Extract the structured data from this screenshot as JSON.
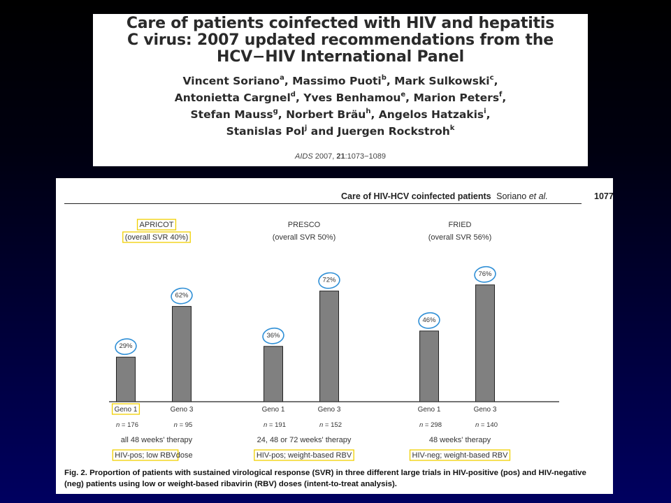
{
  "slide": {
    "paper_title_lines": [
      "Care of patients coinfected with HIV and hepatitis",
      "C virus: 2007 updated recommendations from the",
      "HCV−HIV International Panel"
    ],
    "author_lines": [
      [
        {
          "name": "Vincent Soriano",
          "sup": "a"
        },
        {
          "name": ", Massimo Puoti",
          "sup": "b"
        },
        {
          "name": ", Mark Sulkowski",
          "sup": "c"
        },
        {
          "name": ",",
          "sup": ""
        }
      ],
      [
        {
          "name": "Antonietta Cargnel",
          "sup": "d"
        },
        {
          "name": ", Yves Benhamou",
          "sup": "e"
        },
        {
          "name": ", Marion Peters",
          "sup": "f"
        },
        {
          "name": ",",
          "sup": ""
        }
      ],
      [
        {
          "name": "Stefan Mauss",
          "sup": "g"
        },
        {
          "name": ", Norbert Bräu",
          "sup": "h"
        },
        {
          "name": ", Angelos Hatzakis",
          "sup": "i"
        },
        {
          "name": ",",
          "sup": ""
        }
      ],
      [
        {
          "name": "Stanislas Pol",
          "sup": "j"
        },
        {
          "name": " and Juergen Rockstroh",
          "sup": "k"
        }
      ]
    ],
    "citation": {
      "journal": "AIDS",
      "year": "2007,",
      "volume": "21",
      "pages": ":1073−1089"
    },
    "running_header": {
      "title": "Care of HIV-HCV coinfected patients",
      "authors": "Soriano",
      "etal": "et al.",
      "page": "1077"
    },
    "figure_caption": {
      "label": "Fig. 2.",
      "text": "Proportion of patients with sustained virological response (SVR) in three different large trials in HIV-positive (pos) and HIV-negative (neg) patients using low or weight-based ribavirin (RBV) doses (intent-to-treat analysis)."
    },
    "annotation_color": "#2f8fd6",
    "highlight_color": "#f0d000"
  },
  "chart_data": {
    "type": "bar",
    "unit": "%",
    "ylim": [
      0,
      100
    ],
    "bar_color": "#808080",
    "groups": [
      {
        "trial": "APRICOT",
        "overall": "overall SVR  40%)",
        "overall_prefix": "(",
        "therapy": "all 48 weeks' therapy",
        "population": "HIV-pos; low RBV",
        "population_suffix": " dose",
        "bars": [
          {
            "category": "Geno 1",
            "value": 29,
            "label": "29%",
            "n_label": "n",
            "n_value": " = 176"
          },
          {
            "category": "Geno 3",
            "value": 62,
            "label": "62%",
            "n_label": "n",
            "n_value": " = 95"
          }
        ]
      },
      {
        "trial": "PRESCO",
        "overall": "(overall SVR  50%)",
        "overall_prefix": "",
        "therapy": "24, 48 or 72 weeks' therapy",
        "population": "HIV-pos; weight-based RBV",
        "population_suffix": "",
        "bars": [
          {
            "category": "Geno 1",
            "value": 36,
            "label": "36%",
            "n_label": "n",
            "n_value": " = 191"
          },
          {
            "category": "Geno 3",
            "value": 72,
            "label": "72%",
            "n_label": "n",
            "n_value": " = 152"
          }
        ]
      },
      {
        "trial": "FRIED",
        "overall": "(overall SVR  56%)",
        "overall_prefix": "",
        "therapy": "48 weeks' therapy",
        "population": "HIV-neg; weight-based RBV",
        "population_suffix": "",
        "bars": [
          {
            "category": "Geno 1",
            "value": 46,
            "label": "46%",
            "n_label": "n",
            "n_value": " = 298"
          },
          {
            "category": "Geno 3",
            "value": 76,
            "label": "76%",
            "n_label": "n",
            "n_value": " = 140"
          }
        ]
      }
    ]
  }
}
